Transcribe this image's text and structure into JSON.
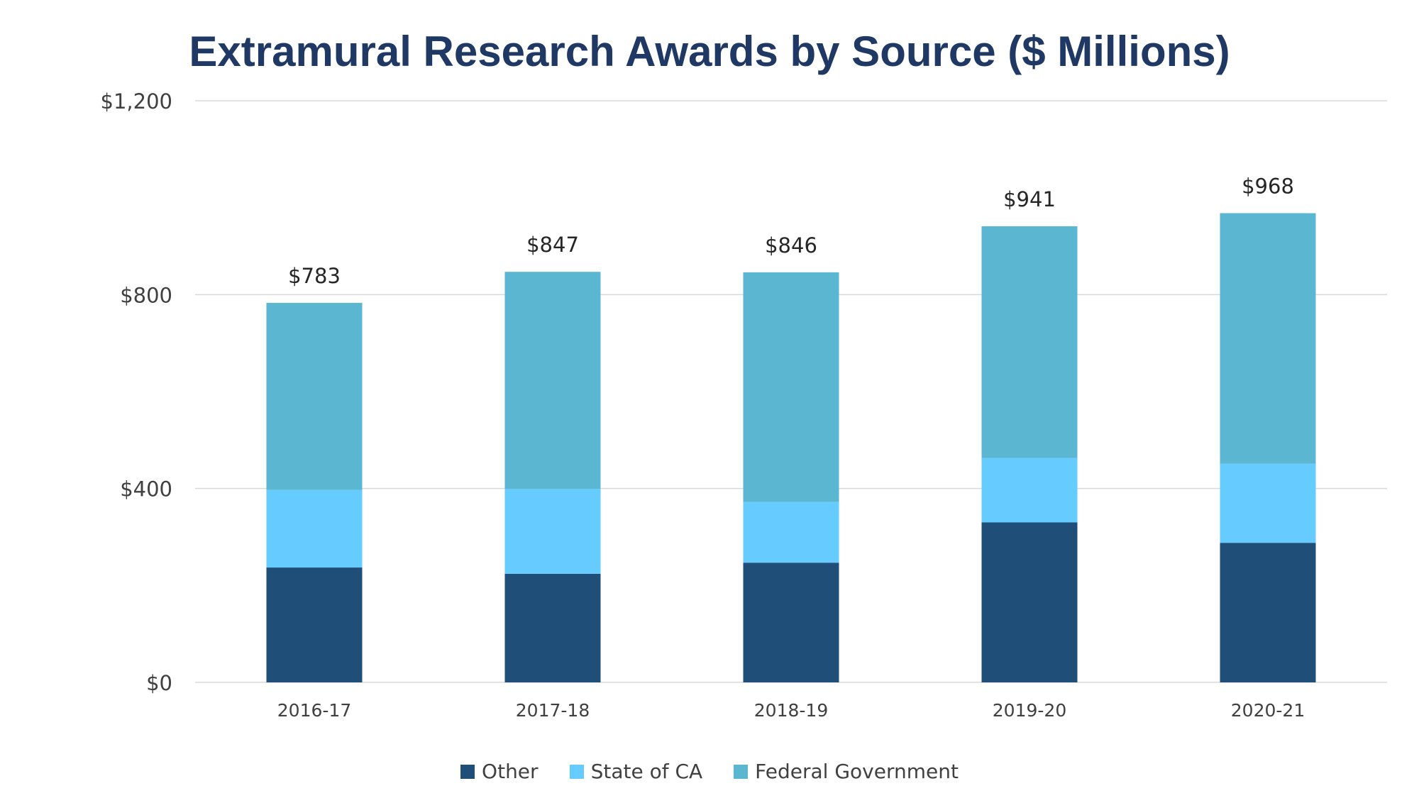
{
  "chart_data": {
    "type": "bar",
    "stacked": true,
    "title": "Extramural Research Awards by Source ($ Millions)",
    "categories": [
      "2016-17",
      "2017-18",
      "2018-19",
      "2019-20",
      "2020-21"
    ],
    "series": [
      {
        "name": "Other",
        "color": "#1f4e79",
        "values": [
          237,
          224,
          247,
          330,
          288
        ]
      },
      {
        "name": "State of CA",
        "color": "#66ccff",
        "values": [
          160,
          175,
          125,
          133,
          163
        ]
      },
      {
        "name": "Federal Government",
        "color": "#5bb7d1",
        "values": [
          386,
          448,
          474,
          478,
          517
        ]
      }
    ],
    "totals": [
      783,
      847,
      846,
      941,
      968
    ],
    "total_labels": [
      "$783",
      "$847",
      "$846",
      "$941",
      "$968"
    ],
    "yticks": [
      0,
      400,
      800,
      1200
    ],
    "ytick_labels": [
      "$0",
      "$400",
      "$800",
      "$1,200"
    ],
    "ylim": [
      0,
      1200
    ],
    "xlabel": "",
    "ylabel": "",
    "grid": true,
    "legend_position": "bottom",
    "colors": {
      "title": "#1f3864",
      "gridline": "#d9d9d9",
      "axis_text": "#404040"
    }
  }
}
